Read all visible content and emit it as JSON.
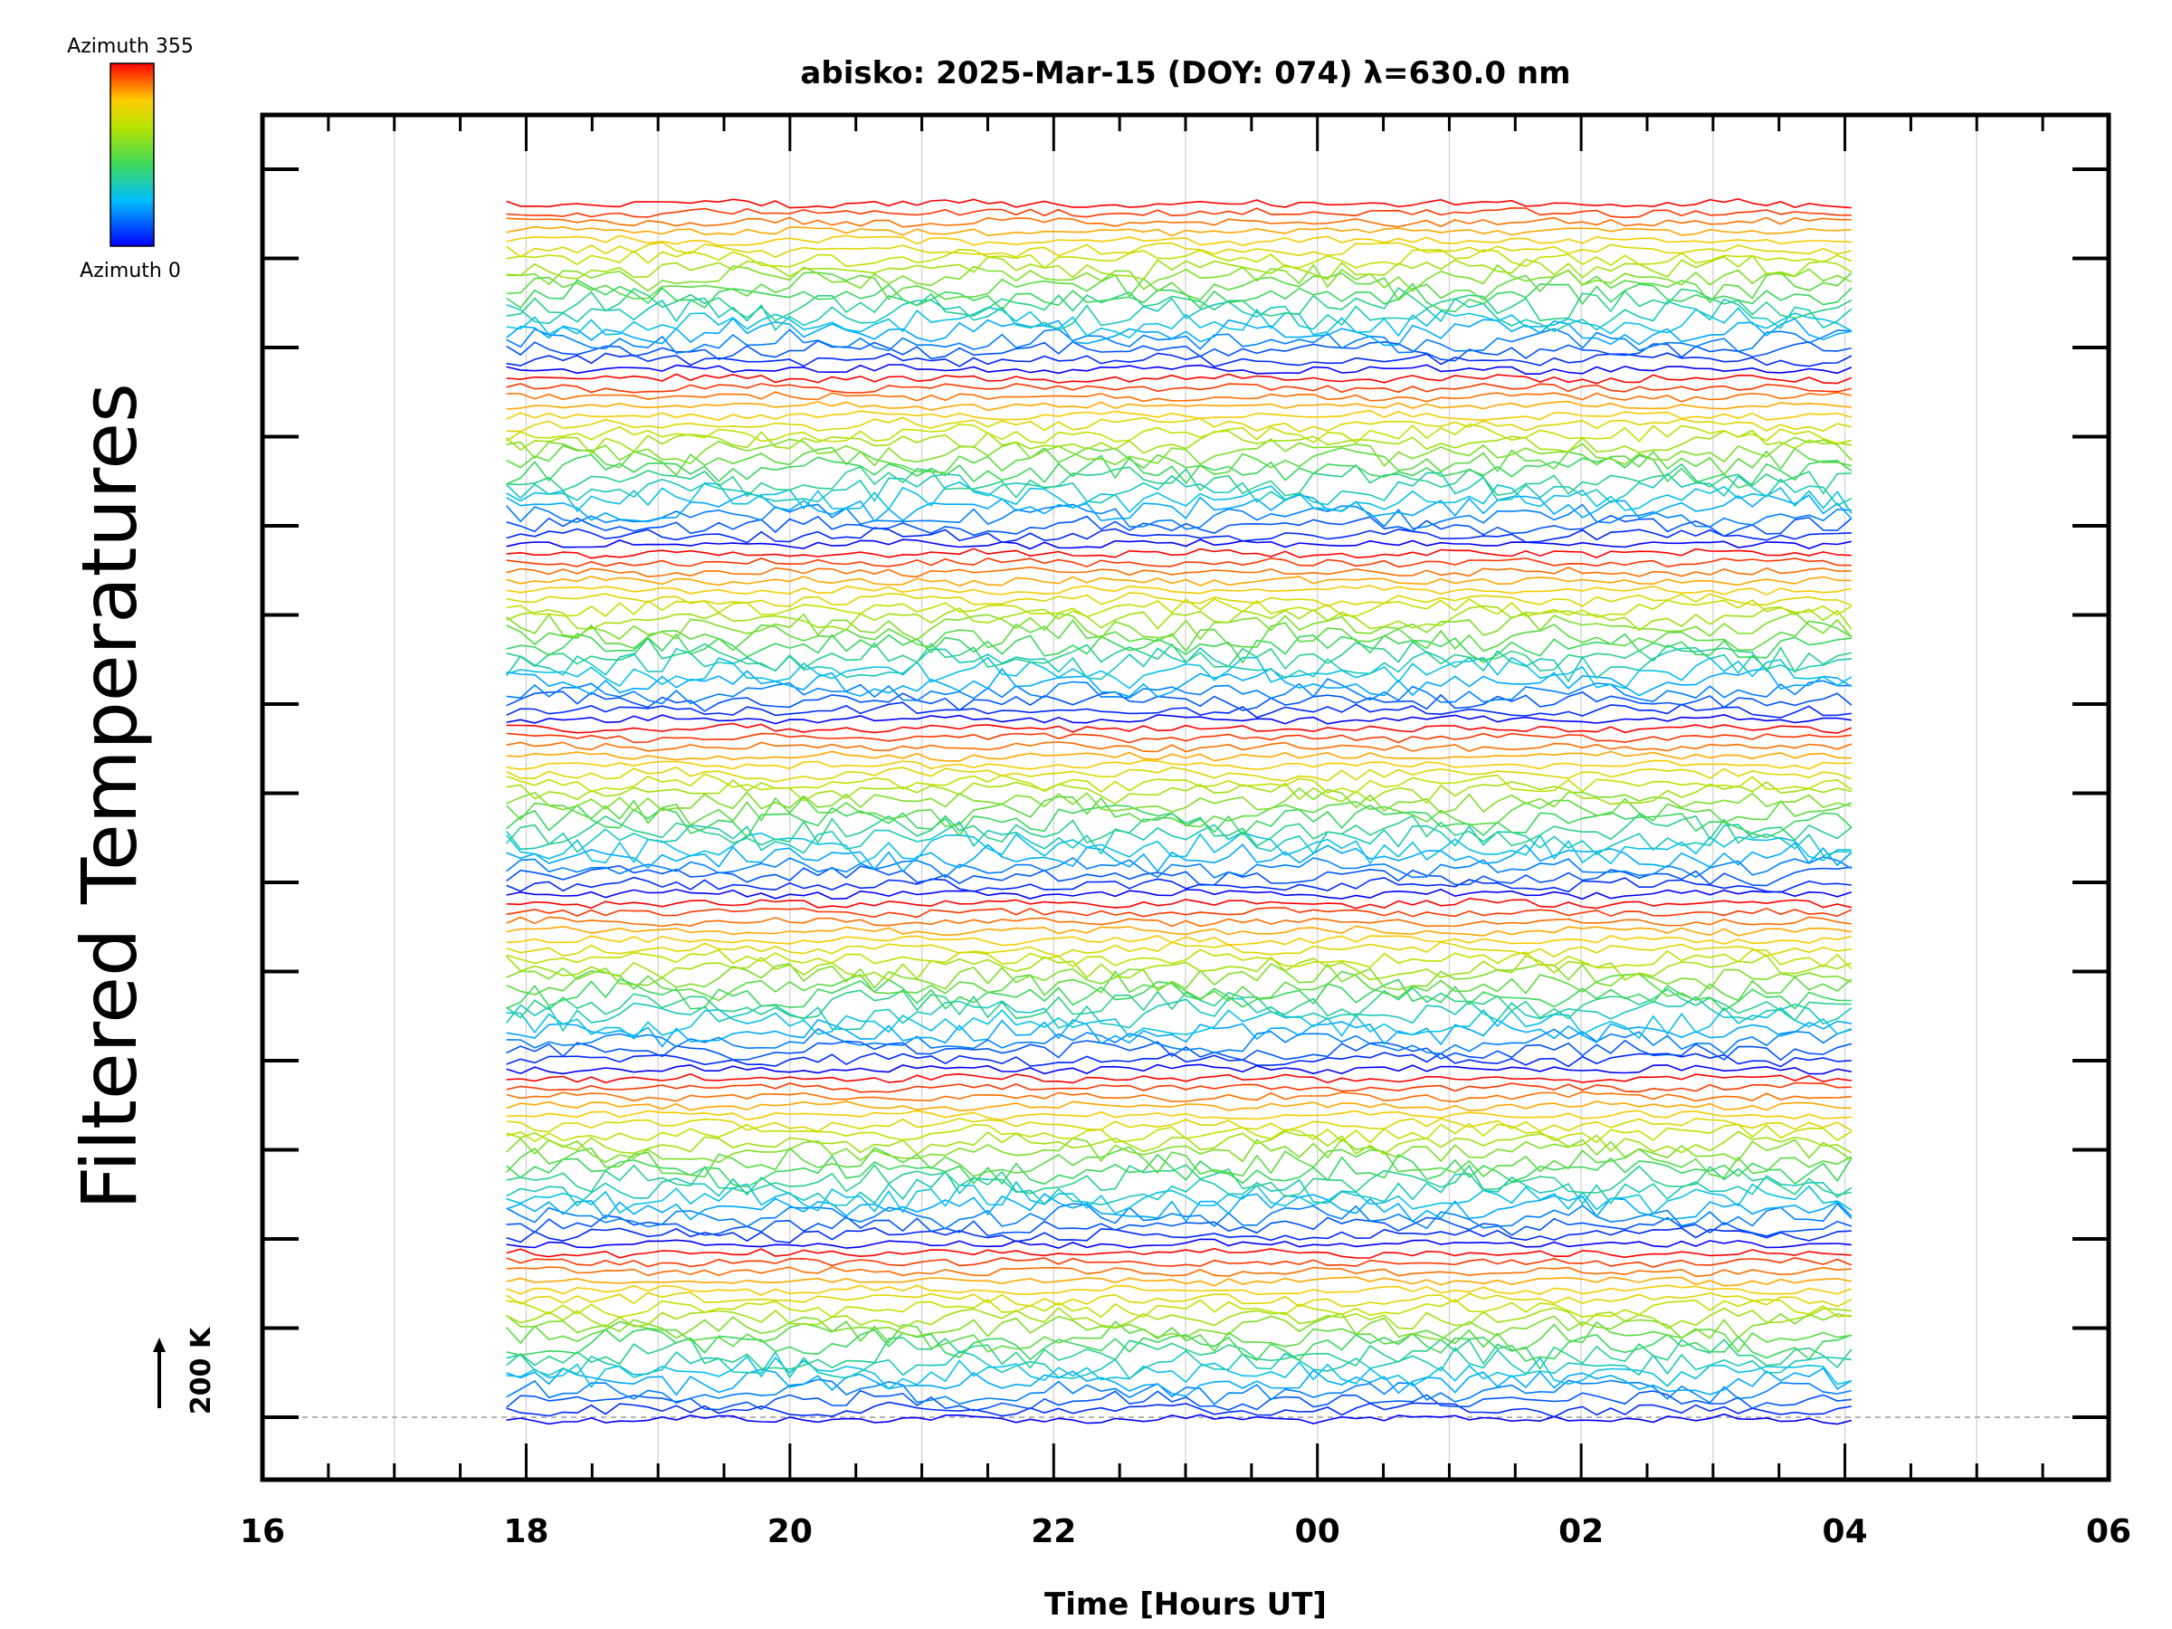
{
  "chart_data": {
    "type": "line",
    "title": "abisko: 2025-Mar-15 (DOY: 074) λ=630.0 nm",
    "xlabel": "Time [Hours UT]",
    "ylabel": "Filtered Temperatures",
    "x_tick_labels": [
      "16",
      "18",
      "20",
      "22",
      "00",
      "02",
      "04",
      "06"
    ],
    "x_range_hours_ut": [
      16,
      30
    ],
    "data_span_hours_ut": [
      17.85,
      28.05
    ],
    "scale_bar_label": "200 K",
    "colorbar": {
      "top_label": "Azimuth 355",
      "bottom_label": "Azimuth 0",
      "colormap": "rainbow (blue → cyan → green → yellow → red)"
    },
    "series_groups": 7,
    "azimuth_steps_per_group": 19,
    "grid": "vertical lines at each hour"
  }
}
